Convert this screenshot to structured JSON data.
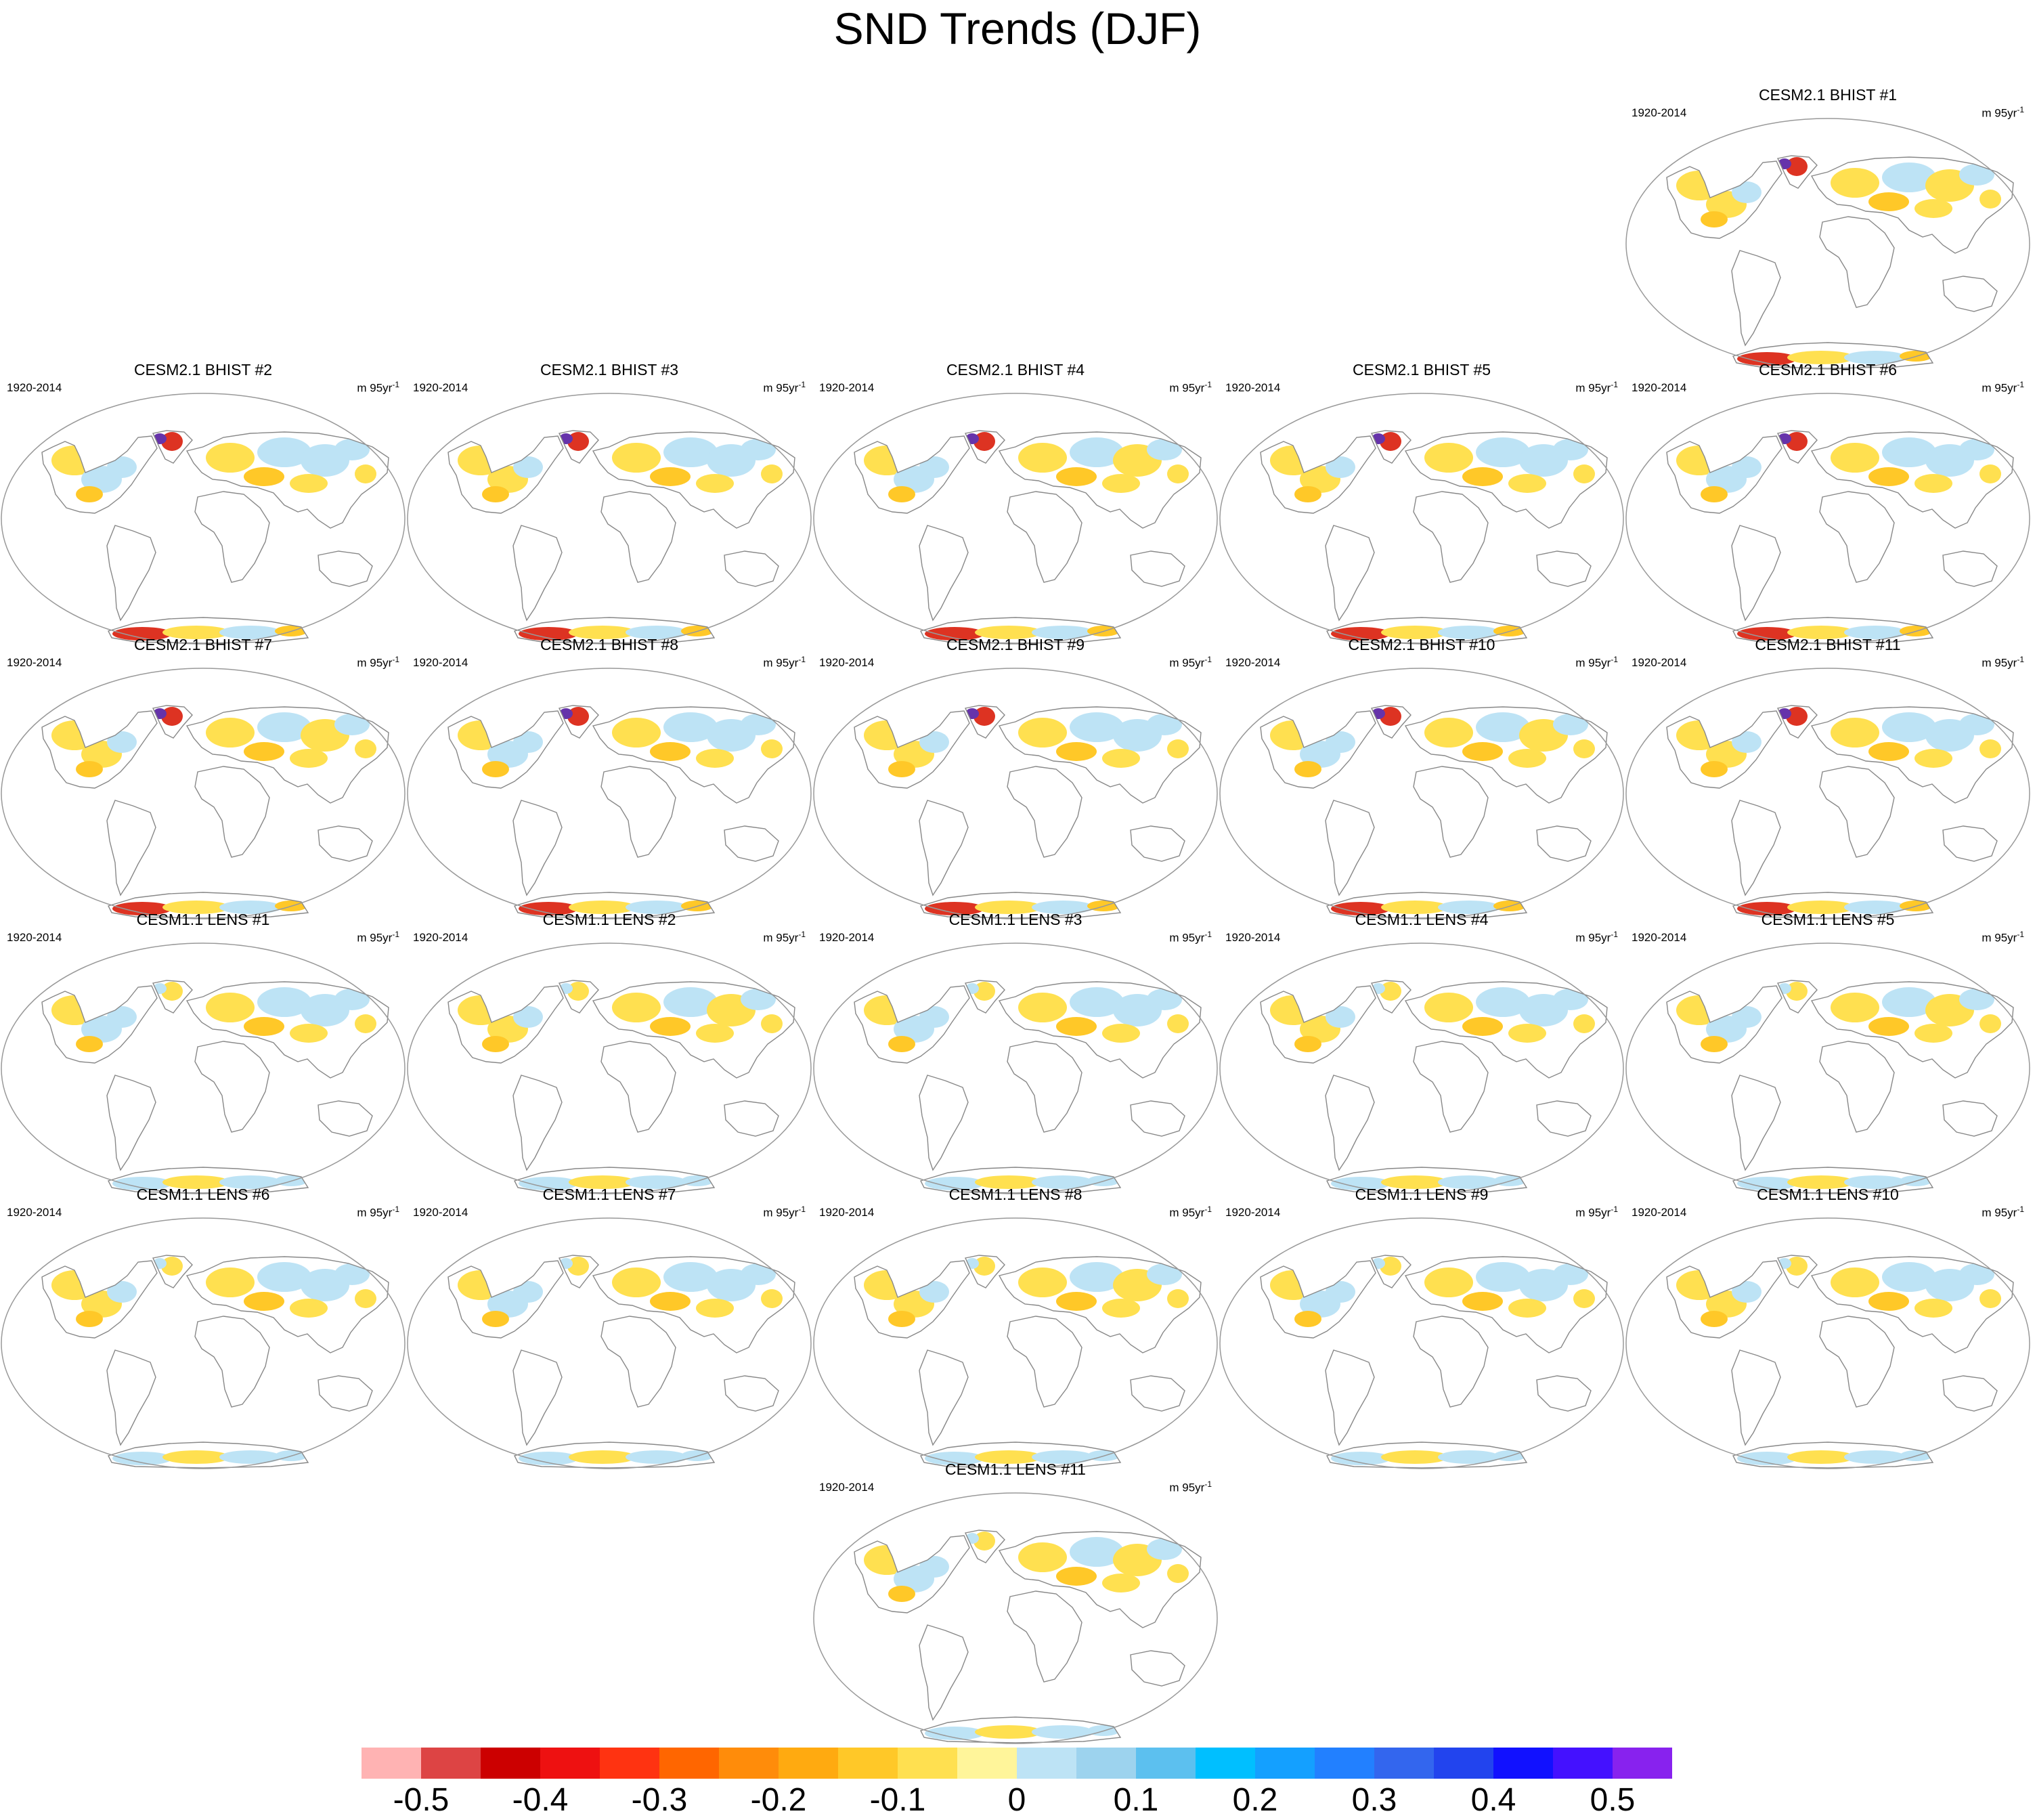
{
  "title": "SND Trends (DJF)",
  "period": "1920-2014",
  "units": "m 95yr",
  "units_exp": "-1",
  "panels": [
    "CESM2.1 BHIST #1",
    "CESM2.1 BHIST #2",
    "CESM2.1 BHIST #3",
    "CESM2.1 BHIST #4",
    "CESM2.1 BHIST #5",
    "CESM2.1 BHIST #6",
    "CESM2.1 BHIST #7",
    "CESM2.1 BHIST #8",
    "CESM2.1 BHIST #9",
    "CESM2.1 BHIST #10",
    "CESM2.1 BHIST #11",
    "CESM1.1 LENS #1",
    "CESM1.1 LENS #2",
    "CESM1.1 LENS #3",
    "CESM1.1 LENS #4",
    "CESM1.1 LENS #5",
    "CESM1.1 LENS #6",
    "CESM1.1 LENS #7",
    "CESM1.1 LENS #8",
    "CESM1.1 LENS #9",
    "CESM1.1 LENS #10",
    "CESM1.1 LENS #11"
  ],
  "colorbar": {
    "colors": [
      "#ffb3b3",
      "#dd4444",
      "#cc0000",
      "#ee1111",
      "#ff3311",
      "#ff6600",
      "#ff8c0a",
      "#ffaa10",
      "#ffc828",
      "#ffe050",
      "#fff59a",
      "#bde3f5",
      "#9dd3ee",
      "#5cc0ef",
      "#00bfff",
      "#14a0ff",
      "#2280ff",
      "#3366ee",
      "#2244ee",
      "#1111ff",
      "#4411ff",
      "#8822ee"
    ],
    "labels": [
      "-0.5",
      "-0.4",
      "-0.3",
      "-0.2",
      "-0.1",
      "0",
      "0.1",
      "0.2",
      "0.3",
      "0.4",
      "0.5"
    ]
  },
  "palette": {
    "land_outline": "#888888",
    "frame": "#999999",
    "warm_light": "#ffe050",
    "warm_mid": "#ffc828",
    "cool_light": "#bde3f5",
    "cool_mid": "#9dd3ee",
    "red": "#dd3322",
    "purple": "#6633aa"
  }
}
